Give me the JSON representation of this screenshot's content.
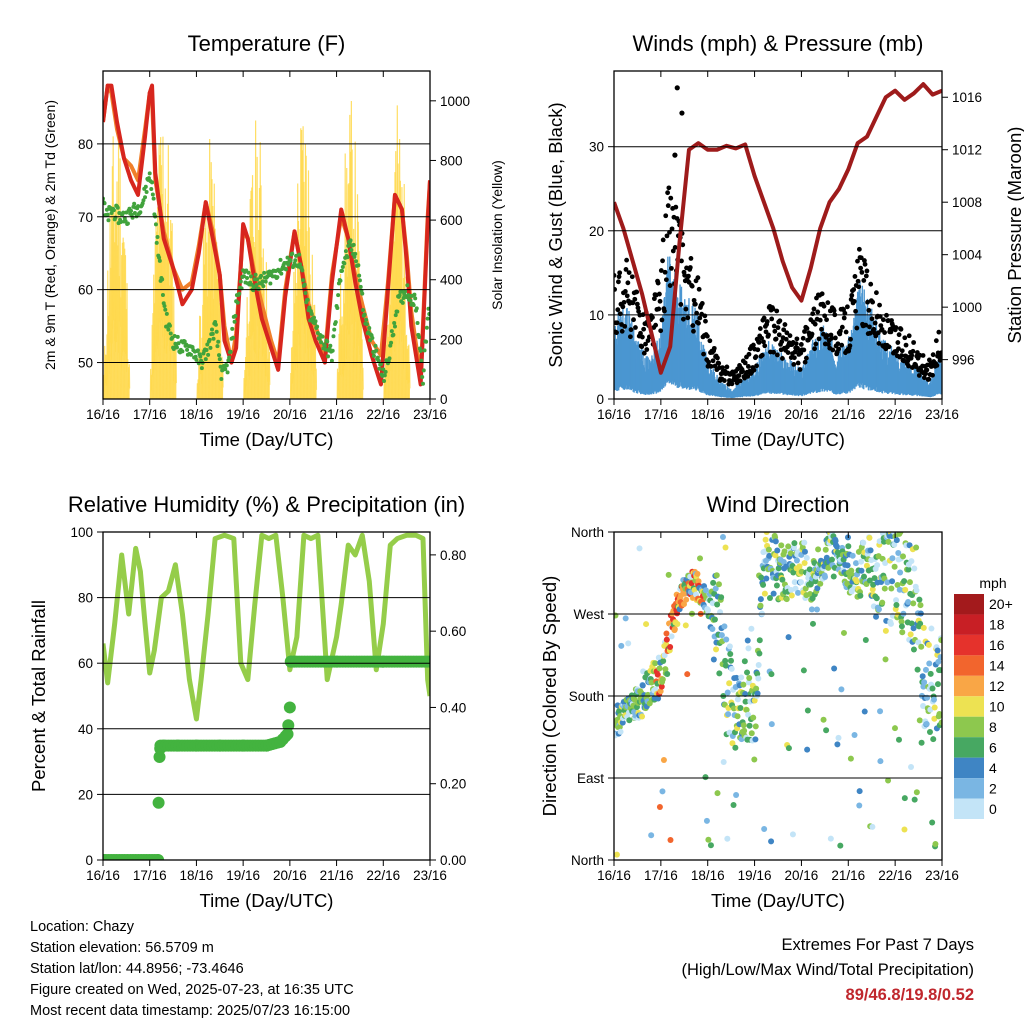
{
  "x_ticks": [
    "16/16",
    "17/16",
    "18/16",
    "19/16",
    "20/16",
    "21/16",
    "22/16",
    "23/16"
  ],
  "x_label": "Time (Day/UTC)",
  "colors": {
    "temp_2m": "#d7261e",
    "temp_9m": "#f07f2a",
    "dewpoint": "#41a33c",
    "solar": "#ffd84a",
    "wind": "#4b96d1",
    "gust": "#000000",
    "pressure": "#9e1b1b",
    "rh": "#95cd4a",
    "precip": "#43b33f"
  },
  "chart_data": [
    {
      "id": "temperature",
      "type": "line",
      "title": "Temperature (F)",
      "xlabel": "Time (Day/UTC)",
      "ylabel": "2m & 9m T (Red, Orange) & 2m Td (Green)",
      "y2label": "Solar Insolation (Yellow)",
      "xlim": [
        0,
        7
      ],
      "ylim": [
        45,
        90
      ],
      "yticks": [
        50,
        60,
        70,
        80
      ],
      "y2lim": [
        0,
        1100
      ],
      "y2ticks": [
        0,
        200,
        400,
        600,
        800,
        1000
      ],
      "grid": true,
      "series": [
        {
          "key": "solar",
          "axis": "y2",
          "style": "solar",
          "days": [
            0,
            1,
            2,
            3,
            4,
            5,
            6
          ],
          "peaks": [
            1000,
            1060,
            880,
            960,
            1050,
            1020,
            1030
          ]
        },
        {
          "key": "temp_9m",
          "axis": "y",
          "style": "line",
          "x": [
            0,
            0.1,
            0.18,
            0.3,
            0.45,
            0.6,
            0.75,
            0.9,
            1.0,
            1.05,
            1.12,
            1.3,
            1.5,
            1.7,
            1.9,
            2.05,
            2.2,
            2.35,
            2.5,
            2.6,
            2.75,
            2.85,
            3.0,
            3.1,
            3.25,
            3.4,
            3.6,
            3.75,
            3.9,
            4.1,
            4.25,
            4.4,
            4.55,
            4.75,
            4.9,
            5.1,
            5.25,
            5.4,
            5.55,
            5.75,
            5.95,
            6.1,
            6.25,
            6.4,
            6.5,
            6.6,
            6.8,
            6.95,
            7.0
          ],
          "y": [
            83,
            88,
            87,
            82,
            78,
            77,
            75,
            82,
            87,
            86,
            75,
            68,
            63,
            60,
            61,
            66,
            72,
            68,
            62,
            55,
            50,
            54,
            68,
            67,
            62,
            58,
            53,
            50,
            60,
            68,
            63,
            58,
            55,
            51,
            62,
            70,
            67,
            62,
            58,
            53,
            51,
            61,
            73,
            71,
            65,
            57,
            48,
            70,
            75
          ]
        },
        {
          "key": "temp_2m",
          "axis": "y",
          "style": "line",
          "x": [
            0,
            0.1,
            0.18,
            0.3,
            0.45,
            0.6,
            0.75,
            0.9,
            1.0,
            1.05,
            1.12,
            1.3,
            1.5,
            1.7,
            1.9,
            2.05,
            2.2,
            2.35,
            2.5,
            2.6,
            2.75,
            2.85,
            3.0,
            3.1,
            3.25,
            3.4,
            3.6,
            3.75,
            3.9,
            4.1,
            4.25,
            4.4,
            4.55,
            4.75,
            4.9,
            5.1,
            5.25,
            5.4,
            5.55,
            5.75,
            5.95,
            6.1,
            6.25,
            6.4,
            6.5,
            6.6,
            6.8,
            6.95,
            7.0
          ],
          "y": [
            83,
            88,
            88,
            83,
            78,
            75,
            73,
            81,
            87,
            88,
            76,
            67,
            63,
            58,
            60,
            65,
            72,
            67,
            62,
            53,
            50,
            52,
            69,
            67,
            61,
            56,
            52,
            49,
            59,
            68,
            63,
            56,
            53,
            50,
            61,
            71,
            67,
            61,
            56,
            51,
            47,
            60,
            73,
            71,
            64,
            55,
            47,
            69,
            75
          ]
        },
        {
          "key": "dewpoint",
          "axis": "y",
          "style": "dots",
          "x": [
            0,
            0.05,
            0.1,
            0.2,
            0.35,
            0.5,
            0.7,
            0.85,
            1.0,
            1.05,
            1.1,
            1.2,
            1.35,
            1.5,
            1.7,
            1.9,
            2.0,
            2.1,
            2.25,
            2.4,
            2.55,
            2.7,
            2.85,
            3.0,
            3.2,
            3.4,
            3.6,
            3.8,
            4.0,
            4.2,
            4.4,
            4.55,
            4.7,
            4.9,
            5.1,
            5.3,
            5.45,
            5.6,
            5.8,
            6.0,
            6.1,
            6.3,
            6.5,
            6.7,
            6.85,
            6.95,
            7.0
          ],
          "y": [
            73,
            70,
            70,
            71,
            70,
            70,
            71,
            72,
            76,
            74,
            71,
            64,
            56,
            53,
            52,
            52,
            51,
            50,
            52,
            55,
            48,
            50,
            58,
            62,
            61,
            61,
            62,
            63,
            64,
            64,
            57,
            55,
            53,
            51,
            63,
            66,
            64,
            56,
            52,
            48,
            50,
            58,
            60,
            58,
            48,
            56,
            58
          ]
        }
      ]
    },
    {
      "id": "winds",
      "type": "scatter",
      "title": "Winds (mph) & Pressure (mb)",
      "xlabel": "Time (Day/UTC)",
      "ylabel": "Sonic Wind & Gust (Blue, Black)",
      "y2label": "Station Pressure (Maroon)",
      "xlim": [
        0,
        7
      ],
      "ylim": [
        0,
        39
      ],
      "yticks": [
        0,
        10,
        20,
        30
      ],
      "y2lim": [
        993,
        1018
      ],
      "y2ticks": [
        996,
        1000,
        1004,
        1008,
        1012,
        1016
      ],
      "grid": true,
      "series": [
        {
          "key": "wind",
          "axis": "y",
          "style": "band",
          "x": [
            0,
            0.25,
            0.5,
            0.75,
            1.0,
            1.15,
            1.3,
            1.5,
            1.75,
            2.0,
            2.25,
            2.5,
            2.75,
            3.0,
            3.25,
            3.5,
            3.75,
            4.0,
            4.25,
            4.5,
            4.75,
            5.0,
            5.25,
            5.5,
            5.75,
            6.0,
            6.25,
            6.5,
            6.75,
            7.0
          ],
          "y": [
            8,
            10,
            6,
            4,
            7,
            15,
            13,
            11,
            9,
            4,
            2,
            1,
            2,
            3,
            6,
            5,
            4,
            3,
            6,
            8,
            5,
            6,
            12,
            9,
            6,
            5,
            4,
            3,
            2,
            5
          ]
        },
        {
          "key": "gust",
          "axis": "y",
          "style": "scatter-band",
          "x": [
            0,
            0.25,
            0.5,
            0.75,
            1.0,
            1.15,
            1.3,
            1.5,
            1.75,
            2.0,
            2.25,
            2.5,
            2.75,
            3.0,
            3.25,
            3.5,
            3.75,
            4.0,
            4.25,
            4.5,
            4.75,
            5.0,
            5.25,
            5.5,
            5.75,
            6.0,
            6.25,
            6.5,
            6.75,
            7.0
          ],
          "y": [
            13,
            15,
            11,
            9,
            14,
            23,
            22,
            16,
            14,
            7,
            4,
            3,
            4,
            6,
            10,
            9,
            7,
            6,
            10,
            12,
            9,
            10,
            16,
            13,
            9,
            8,
            7,
            5,
            4,
            8
          ]
        },
        {
          "key": "pressure",
          "axis": "y2",
          "style": "line",
          "x": [
            0,
            0.2,
            0.4,
            0.6,
            0.8,
            1.0,
            1.2,
            1.4,
            1.6,
            1.8,
            2.0,
            2.2,
            2.4,
            2.6,
            2.8,
            3.0,
            3.2,
            3.4,
            3.6,
            3.8,
            4.0,
            4.2,
            4.4,
            4.6,
            4.8,
            5.0,
            5.2,
            5.4,
            5.6,
            5.8,
            6.0,
            6.2,
            6.4,
            6.6,
            6.8,
            7.0
          ],
          "y": [
            1008,
            1006,
            1003.5,
            1001,
            998,
            995,
            997,
            1005,
            1012,
            1012.5,
            1012,
            1012,
            1012.3,
            1012.1,
            1012.4,
            1010,
            1008,
            1006,
            1003.5,
            1001.5,
            1000.5,
            1003,
            1006,
            1008,
            1009,
            1010.5,
            1012.5,
            1013,
            1014.5,
            1016,
            1016.5,
            1015.8,
            1016.3,
            1017,
            1016.2,
            1016.5
          ]
        }
      ],
      "extra_points": [
        {
          "x": 1.35,
          "y": 37
        },
        {
          "x": 1.45,
          "y": 34
        },
        {
          "x": 1.3,
          "y": 29
        }
      ]
    },
    {
      "id": "humidity",
      "type": "line",
      "title": "Relative Humidity (%) & Precipitation (in)",
      "xlabel": "Time (Day/UTC)",
      "ylabel": "Percent & Total Rainfall",
      "xlim": [
        0,
        7
      ],
      "ylim": [
        0,
        100
      ],
      "yticks": [
        0,
        20,
        40,
        60,
        80,
        100
      ],
      "y2lim": [
        0,
        0.86
      ],
      "y2ticks": [
        0.0,
        0.2,
        0.4,
        0.6,
        0.8
      ],
      "y2ticklabels": [
        "0.00",
        "0.20",
        "0.40",
        "0.60",
        "0.80"
      ],
      "grid": true,
      "series": [
        {
          "key": "rh",
          "axis": "y",
          "style": "line",
          "x": [
            0,
            0.1,
            0.25,
            0.4,
            0.55,
            0.7,
            0.8,
            0.9,
            1.0,
            1.1,
            1.25,
            1.4,
            1.55,
            1.7,
            1.85,
            2.0,
            2.1,
            2.25,
            2.4,
            2.6,
            2.8,
            2.95,
            3.1,
            3.25,
            3.4,
            3.55,
            3.7,
            3.85,
            4.0,
            4.15,
            4.3,
            4.45,
            4.6,
            4.8,
            5.0,
            5.1,
            5.25,
            5.4,
            5.55,
            5.7,
            5.85,
            6.0,
            6.15,
            6.3,
            6.5,
            6.7,
            6.85,
            6.95,
            7.0
          ],
          "y": [
            66,
            54,
            72,
            93,
            75,
            95,
            88,
            72,
            57,
            64,
            80,
            82,
            90,
            75,
            55,
            43,
            55,
            75,
            98,
            99,
            98,
            60,
            55,
            78,
            99,
            98,
            99,
            80,
            58,
            68,
            99,
            98,
            99,
            55,
            68,
            78,
            96,
            93,
            99,
            85,
            58,
            72,
            96,
            98,
            99,
            99,
            98,
            55,
            50
          ]
        },
        {
          "key": "precip",
          "axis": "y2",
          "style": "step",
          "x": [
            0,
            1.18,
            1.19,
            1.21,
            1.23,
            1.3,
            1.6,
            2.0,
            2.5,
            3.0,
            3.5,
            3.8,
            3.95,
            4.0,
            4.02,
            4.1,
            5.0,
            6.0,
            7.0
          ],
          "y": [
            0.0,
            0.0,
            0.15,
            0.27,
            0.3,
            0.3,
            0.3,
            0.3,
            0.3,
            0.3,
            0.3,
            0.31,
            0.33,
            0.4,
            0.52,
            0.52,
            0.52,
            0.52,
            0.52
          ]
        }
      ]
    },
    {
      "id": "direction",
      "type": "scatter",
      "title": "Wind Direction",
      "xlabel": "Time (Day/UTC)",
      "ylabel": "Direction (Colored By Speed)",
      "xlim": [
        0,
        7
      ],
      "ylim": [
        0,
        360
      ],
      "yticks": [
        0,
        90,
        180,
        270,
        360
      ],
      "yticklabels": [
        "North",
        "East",
        "South",
        "West",
        "North"
      ],
      "grid": true,
      "legend": {
        "title": "mph",
        "labels": [
          "20+",
          "18",
          "16",
          "14",
          "12",
          "10",
          "8",
          "6",
          "4",
          "2",
          "0"
        ],
        "colors": [
          "#a31a1c",
          "#c81f25",
          "#e5322c",
          "#f2652d",
          "#f9a646",
          "#ede252",
          "#8dc84e",
          "#47a862",
          "#3f85c4",
          "#7ab6e3",
          "#c3e4f7"
        ],
        "placement": "right"
      },
      "series": [
        {
          "key": "dir",
          "style": "colored-scatter",
          "x": [
            0,
            0.2,
            0.4,
            0.6,
            0.8,
            1.0,
            1.15,
            1.3,
            1.45,
            1.6,
            1.75,
            1.9,
            2.05,
            2.2,
            2.4,
            2.6,
            2.8,
            3.0,
            3.2,
            3.4,
            3.6,
            3.8,
            4.0,
            4.2,
            4.4,
            4.6,
            4.8,
            5.0,
            5.2,
            5.4,
            5.6,
            5.8,
            6.0,
            6.2,
            6.4,
            6.6,
            6.8,
            7.0
          ],
          "y": [
            140,
            160,
            170,
            175,
            195,
            200,
            230,
            270,
            290,
            305,
            300,
            290,
            280,
            270,
            195,
            160,
            175,
            140,
            330,
            320,
            310,
            320,
            320,
            300,
            310,
            345,
            330,
            320,
            310,
            330,
            305,
            310,
            320,
            300,
            280,
            200,
            180,
            200
          ],
          "spread": [
            10,
            15,
            15,
            20,
            20,
            25,
            25,
            20,
            15,
            15,
            15,
            15,
            25,
            50,
            60,
            40,
            40,
            40,
            40,
            40,
            30,
            30,
            30,
            30,
            20,
            20,
            20,
            25,
            25,
            30,
            40,
            60,
            60,
            60,
            60,
            60,
            50,
            50
          ]
        }
      ]
    }
  ],
  "info": {
    "location": "Location: Chazy",
    "elevation": "Station elevation: 56.5709 m",
    "latlon": "Station lat/lon: 44.8956; -73.4646",
    "created": "Figure created on Wed, 2025-07-23, at 16:35 UTC",
    "recent": "Most recent data timestamp: 2025/07/23 16:15:00"
  },
  "extremes": {
    "title": "Extremes For Past 7 Days",
    "subtitle": "(High/Low/Max Wind/Total Precipitation)",
    "values": "89/46.8/19.8/0.52"
  }
}
